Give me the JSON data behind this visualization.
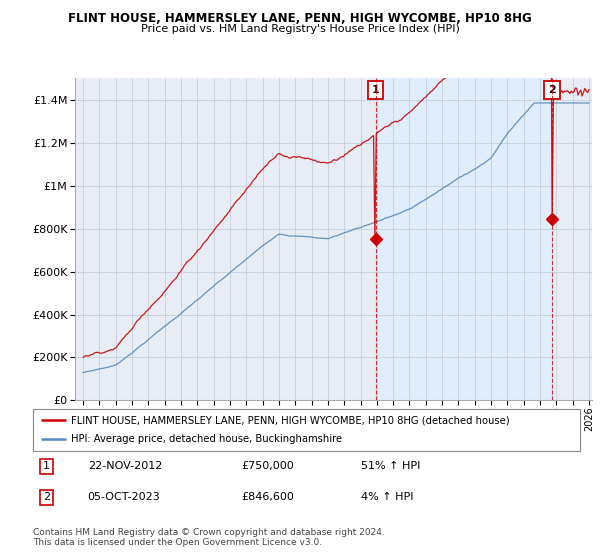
{
  "title": "FLINT HOUSE, HAMMERSLEY LANE, PENN, HIGH WYCOMBE, HP10 8HG",
  "subtitle": "Price paid vs. HM Land Registry's House Price Index (HPI)",
  "legend_line1": "FLINT HOUSE, HAMMERSLEY LANE, PENN, HIGH WYCOMBE, HP10 8HG (detached house)",
  "legend_line2": "HPI: Average price, detached house, Buckinghamshire",
  "sale1_label": "1",
  "sale1_date": "22-NOV-2012",
  "sale1_price": "£750,000",
  "sale1_hpi": "51% ↑ HPI",
  "sale2_label": "2",
  "sale2_date": "05-OCT-2023",
  "sale2_price": "£846,600",
  "sale2_hpi": "4% ↑ HPI",
  "footer": "Contains HM Land Registry data © Crown copyright and database right 2024.\nThis data is licensed under the Open Government Licence v3.0.",
  "red_color": "#cc0000",
  "blue_color": "#5588bb",
  "shade_color": "#ddeeff",
  "marker1_x": 2012.92,
  "marker2_x": 2023.75,
  "marker1_price": 750000,
  "marker2_price": 846600,
  "ylim_max": 1500000,
  "xlim_min": 1994.5,
  "xlim_max": 2026.2
}
